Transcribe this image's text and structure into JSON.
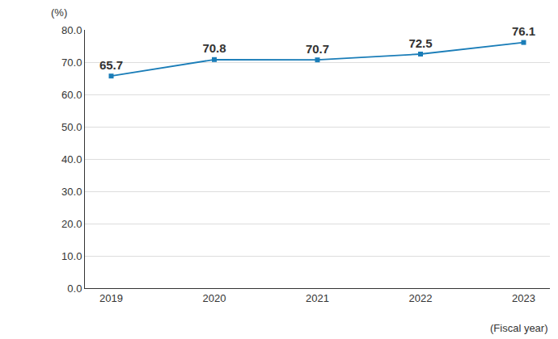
{
  "chart_data": {
    "type": "line",
    "categories": [
      "2019",
      "2020",
      "2021",
      "2022",
      "2023"
    ],
    "values": [
      65.7,
      70.8,
      70.7,
      72.5,
      76.1
    ],
    "color": "#1a7db8",
    "marker": "square",
    "data_labels": true,
    "grid": true,
    "ylim": [
      0,
      80
    ],
    "yticks": [
      {
        "value": 0,
        "label": "0.0"
      },
      {
        "value": 10,
        "label": "10.0"
      },
      {
        "value": 20,
        "label": "20.0"
      },
      {
        "value": 30,
        "label": "30.0"
      },
      {
        "value": 40,
        "label": "40.0"
      },
      {
        "value": 50,
        "label": "50.0"
      },
      {
        "value": 60,
        "label": "60.0"
      },
      {
        "value": 70,
        "label": "70.0"
      },
      {
        "value": 80,
        "label": "80.0"
      }
    ],
    "y_label": "(%)",
    "x_label": "(Fiscal year)"
  }
}
